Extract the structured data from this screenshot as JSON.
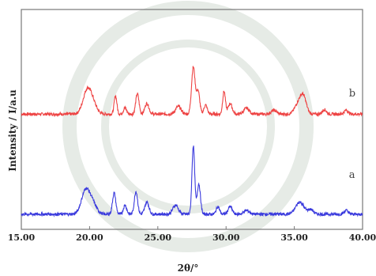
{
  "chart_data": {
    "type": "line",
    "xlabel": "2θ/°",
    "ylabel": "Intensity / I/a.u",
    "xlim": [
      15,
      40
    ],
    "ylim": [
      0,
      290
    ],
    "xticks": [
      "15.00",
      "20.00",
      "25.00",
      "30.00",
      "35.00",
      "40.00"
    ],
    "grid": false,
    "legend": "none",
    "series": [
      {
        "name": "b",
        "color": "#ee4444",
        "baseline": 152,
        "noise": 2,
        "peaks": [
          {
            "x": 19.8,
            "height": 28,
            "width": 0.3
          },
          {
            "x": 20.2,
            "height": 14,
            "width": 0.3
          },
          {
            "x": 21.9,
            "height": 24,
            "width": 0.1
          },
          {
            "x": 22.6,
            "height": 8,
            "width": 0.12
          },
          {
            "x": 23.5,
            "height": 27,
            "width": 0.12
          },
          {
            "x": 24.2,
            "height": 14,
            "width": 0.15
          },
          {
            "x": 26.5,
            "height": 10,
            "width": 0.2
          },
          {
            "x": 27.6,
            "height": 62,
            "width": 0.13
          },
          {
            "x": 27.95,
            "height": 30,
            "width": 0.12
          },
          {
            "x": 28.5,
            "height": 12,
            "width": 0.12
          },
          {
            "x": 29.85,
            "height": 30,
            "width": 0.1
          },
          {
            "x": 30.3,
            "height": 14,
            "width": 0.15
          },
          {
            "x": 31.5,
            "height": 8,
            "width": 0.2
          },
          {
            "x": 33.5,
            "height": 5,
            "width": 0.2
          },
          {
            "x": 35.4,
            "height": 18,
            "width": 0.3
          },
          {
            "x": 35.7,
            "height": 14,
            "width": 0.2
          },
          {
            "x": 37.2,
            "height": 6,
            "width": 0.15
          },
          {
            "x": 38.8,
            "height": 5,
            "width": 0.15
          }
        ]
      },
      {
        "name": "a",
        "color": "#3b3bdd",
        "baseline": 20,
        "noise": 2,
        "peaks": [
          {
            "x": 19.7,
            "height": 30,
            "width": 0.3
          },
          {
            "x": 20.2,
            "height": 14,
            "width": 0.3
          },
          {
            "x": 21.8,
            "height": 28,
            "width": 0.12
          },
          {
            "x": 22.6,
            "height": 12,
            "width": 0.12
          },
          {
            "x": 23.4,
            "height": 30,
            "width": 0.12
          },
          {
            "x": 24.2,
            "height": 16,
            "width": 0.15
          },
          {
            "x": 26.3,
            "height": 12,
            "width": 0.2
          },
          {
            "x": 27.6,
            "height": 90,
            "width": 0.1
          },
          {
            "x": 28.0,
            "height": 40,
            "width": 0.12
          },
          {
            "x": 29.4,
            "height": 10,
            "width": 0.12
          },
          {
            "x": 30.3,
            "height": 10,
            "width": 0.15
          },
          {
            "x": 31.5,
            "height": 5,
            "width": 0.2
          },
          {
            "x": 35.4,
            "height": 16,
            "width": 0.3
          },
          {
            "x": 36.2,
            "height": 6,
            "width": 0.2
          },
          {
            "x": 38.8,
            "height": 5,
            "width": 0.15
          }
        ]
      }
    ],
    "annotations": [
      {
        "text": "b",
        "x": 39.0,
        "y": 175
      },
      {
        "text": "a",
        "x": 39.0,
        "y": 68
      }
    ]
  }
}
